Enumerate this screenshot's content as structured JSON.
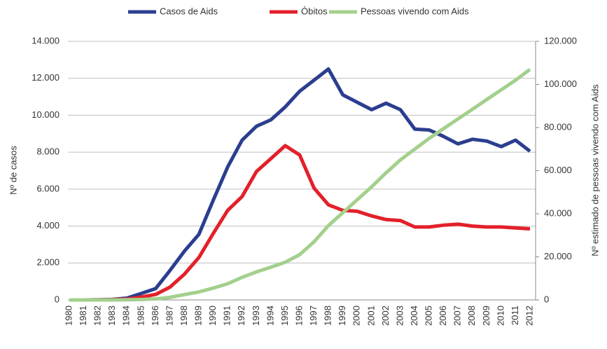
{
  "chart_data": {
    "type": "line",
    "y_label": "Nº de casos",
    "y2_label": "Nº estimado de pessoas vivendo com Aids",
    "categories": [
      "1980",
      "1981",
      "1982",
      "1983",
      "1984",
      "1985",
      "1986",
      "1987",
      "1988",
      "1989",
      "1990",
      "1991",
      "1992",
      "1993",
      "1994",
      "1995",
      "1996",
      "1997",
      "1998",
      "1999",
      "2000",
      "2001",
      "2002",
      "2003",
      "2004",
      "2005",
      "2006",
      "2007",
      "2008",
      "2009",
      "2010",
      "2011",
      "2012"
    ],
    "series": [
      {
        "name": "Casos de Aids",
        "color": "#2b3e8f",
        "values": [
          0,
          0,
          10,
          30,
          100,
          350,
          620,
          1600,
          2650,
          3550,
          5400,
          7200,
          8650,
          9400,
          9750,
          10450,
          11300,
          11900,
          12500,
          11100,
          10700,
          10300,
          10650,
          10300,
          9250,
          9200,
          8850,
          8450,
          8700,
          8600,
          8300,
          8650,
          8050
        ]
      },
      {
        "name": "Óbitos",
        "color": "#e3202a",
        "values": [
          0,
          0,
          5,
          15,
          50,
          150,
          300,
          700,
          1400,
          2300,
          3600,
          4850,
          5600,
          6950,
          7650,
          8350,
          7850,
          6050,
          5150,
          4850,
          4800,
          4550,
          4350,
          4300,
          3950,
          3950,
          4050,
          4100,
          4000,
          3950,
          3950,
          3900,
          3850
        ]
      },
      {
        "name": "Pessoas vivendo com Aids",
        "color": "#a3d08d",
        "axis": "y2",
        "values": [
          0,
          0,
          0,
          0,
          50,
          200,
          500,
          1200,
          2500,
          3700,
          5500,
          7500,
          10500,
          13000,
          15200,
          17500,
          21000,
          27000,
          34500,
          40500,
          46500,
          52500,
          59000,
          65000,
          70000,
          75000,
          79500,
          84000,
          88500,
          93000,
          97500,
          102000,
          107000
        ]
      }
    ],
    "ylim": [
      0,
      14000
    ],
    "yticks": [
      0,
      {
        "value": 2000,
        "label": "2.000"
      },
      {
        "value": 4000,
        "label": "4.000"
      },
      {
        "value": 6000,
        "label": "6.000"
      },
      {
        "value": 8000,
        "label": "8.000"
      },
      {
        "value": 10000,
        "label": "10.000"
      },
      {
        "value": 12000,
        "label": "12.000"
      },
      {
        "value": 14000,
        "label": "14.000"
      }
    ],
    "y2lim": [
      0,
      120000
    ],
    "y2ticks": [
      0,
      {
        "value": 20000,
        "label": "20.000"
      },
      {
        "value": 40000,
        "label": "40.000"
      },
      {
        "value": 60000,
        "label": "60.000"
      },
      {
        "value": 80000,
        "label": "80.000"
      },
      {
        "value": 100000,
        "label": "100.000"
      },
      {
        "value": 120000,
        "label": "120.000"
      }
    ],
    "grid": true
  }
}
